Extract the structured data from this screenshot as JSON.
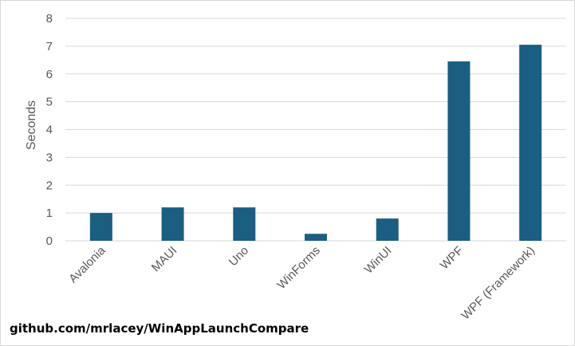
{
  "chart_data": {
    "type": "bar",
    "title": "",
    "xlabel": "",
    "ylabel": "Seconds",
    "ylim": [
      0,
      8
    ],
    "yticks": [
      0,
      1,
      2,
      3,
      4,
      5,
      6,
      7,
      8
    ],
    "grid": true,
    "legend": "none",
    "categories": [
      "Avalonia",
      "MAUI",
      "Uno",
      "WinForms",
      "WinUI",
      "WPF",
      "WPF (Framework)"
    ],
    "values": [
      1.0,
      1.2,
      1.2,
      0.25,
      0.8,
      6.45,
      7.05
    ],
    "bar_color": "#1a5e82",
    "grid_color": "#d9d9d9"
  },
  "footer": {
    "source": "github.com/mrlacey/WinAppLaunchCompare"
  }
}
